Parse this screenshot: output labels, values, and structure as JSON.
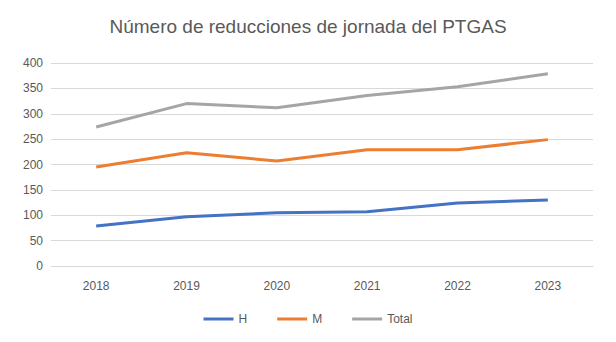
{
  "chart_data": {
    "type": "line",
    "title": "Número de reducciones de jornada del PTGAS",
    "categories": [
      "2018",
      "2019",
      "2020",
      "2021",
      "2022",
      "2023"
    ],
    "series": [
      {
        "name": "H",
        "color": "#4472c4",
        "values": [
          79,
          97,
          105,
          107,
          124,
          130
        ]
      },
      {
        "name": "M",
        "color": "#ed7d31",
        "values": [
          195,
          223,
          207,
          229,
          229,
          249
        ]
      },
      {
        "name": "Total",
        "color": "#a5a5a5",
        "values": [
          274,
          320,
          312,
          336,
          353,
          379
        ]
      }
    ],
    "ylim": [
      0,
      400
    ],
    "yticks": [
      0,
      50,
      100,
      150,
      200,
      250,
      300,
      350,
      400
    ],
    "grid": true,
    "legend": "bottom",
    "marker": "none"
  }
}
